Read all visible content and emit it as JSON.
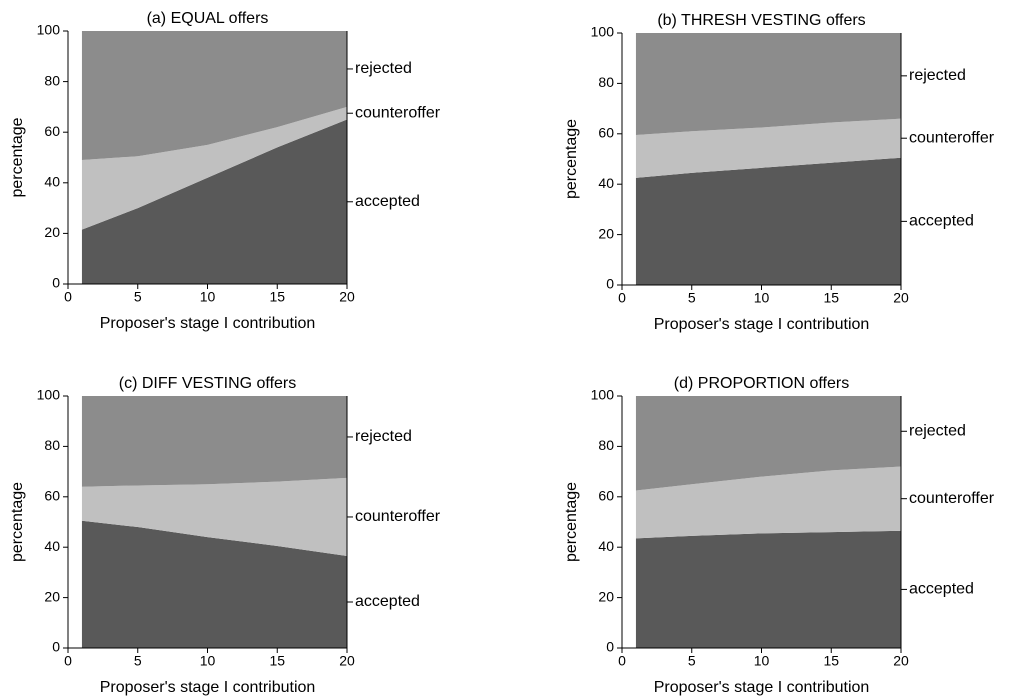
{
  "chart_data": [
    {
      "type": "area",
      "stacked": true,
      "title": "(a) EQUAL offers",
      "xlabel": "Proposer's stage I contribution",
      "ylabel": "percentage",
      "x": [
        1,
        5,
        10,
        15,
        20
      ],
      "xlim": [
        0,
        20
      ],
      "xticks": [
        0,
        5,
        10,
        15,
        20
      ],
      "ylim": [
        0,
        100
      ],
      "yticks": [
        0,
        20,
        40,
        60,
        80,
        100
      ],
      "series": [
        {
          "name": "accepted",
          "color": "#595959",
          "values": [
            21.5,
            30,
            42,
            54,
            65
          ]
        },
        {
          "name": "counteroffer",
          "color": "#c0c0c0",
          "values": [
            27.5,
            20.5,
            13,
            8,
            5
          ]
        },
        {
          "name": "rejected",
          "color": "#8c8c8c",
          "values": [
            51,
            49.5,
            45,
            38,
            30
          ]
        }
      ]
    },
    {
      "type": "area",
      "stacked": true,
      "title": "(b) THRESH VESTING offers",
      "xlabel": "Proposer's stage I contribution",
      "ylabel": "percentage",
      "x": [
        1,
        5,
        10,
        15,
        20
      ],
      "xlim": [
        0,
        20
      ],
      "xticks": [
        0,
        5,
        10,
        15,
        20
      ],
      "ylim": [
        0,
        100
      ],
      "yticks": [
        0,
        20,
        40,
        60,
        80,
        100
      ],
      "series": [
        {
          "name": "accepted",
          "color": "#595959",
          "values": [
            42.5,
            44.5,
            46.5,
            48.5,
            50.5
          ]
        },
        {
          "name": "counteroffer",
          "color": "#c0c0c0",
          "values": [
            17,
            16.5,
            16,
            16,
            15.5
          ]
        },
        {
          "name": "rejected",
          "color": "#8c8c8c",
          "values": [
            40.5,
            39,
            37.5,
            35.5,
            34
          ]
        }
      ]
    },
    {
      "type": "area",
      "stacked": true,
      "title": "(c) DIFF VESTING offers",
      "xlabel": "Proposer's stage I contribution",
      "ylabel": "percentage",
      "x": [
        1,
        5,
        10,
        15,
        20
      ],
      "xlim": [
        0,
        20
      ],
      "xticks": [
        0,
        5,
        10,
        15,
        20
      ],
      "ylim": [
        0,
        100
      ],
      "yticks": [
        0,
        20,
        40,
        60,
        80,
        100
      ],
      "series": [
        {
          "name": "accepted",
          "color": "#595959",
          "values": [
            50.5,
            48,
            44,
            40.5,
            36.5
          ]
        },
        {
          "name": "counteroffer",
          "color": "#c0c0c0",
          "values": [
            13.5,
            16.5,
            21,
            25.5,
            31
          ]
        },
        {
          "name": "rejected",
          "color": "#8c8c8c",
          "values": [
            36,
            35.5,
            35,
            34,
            32.5
          ]
        }
      ]
    },
    {
      "type": "area",
      "stacked": true,
      "title": "(d) PROPORTION offers",
      "xlabel": "Proposer's stage I contribution",
      "ylabel": "percentage",
      "x": [
        1,
        5,
        10,
        15,
        20
      ],
      "xlim": [
        0,
        20
      ],
      "xticks": [
        0,
        5,
        10,
        15,
        20
      ],
      "ylim": [
        0,
        100
      ],
      "yticks": [
        0,
        20,
        40,
        60,
        80,
        100
      ],
      "series": [
        {
          "name": "accepted",
          "color": "#595959",
          "values": [
            43.5,
            44.5,
            45.5,
            46,
            46.5
          ]
        },
        {
          "name": "counteroffer",
          "color": "#c0c0c0",
          "values": [
            19,
            20.5,
            22.5,
            24.5,
            25.5
          ]
        },
        {
          "name": "rejected",
          "color": "#8c8c8c",
          "values": [
            37.5,
            35,
            32,
            29.5,
            28
          ]
        }
      ]
    }
  ]
}
